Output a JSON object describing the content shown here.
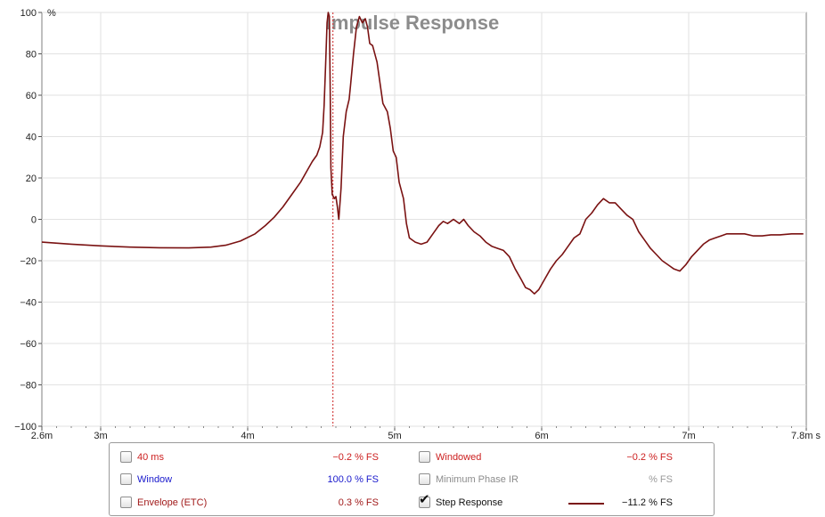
{
  "chart_data": {
    "type": "line",
    "title": "Impulse Response",
    "ylabel": "%",
    "xlim": [
      2.6,
      7.8
    ],
    "ylim": [
      -100,
      100
    ],
    "grid": true,
    "x_ticks": [
      {
        "value": 2.6,
        "label": "2.6m"
      },
      {
        "value": 3,
        "label": "3m"
      },
      {
        "value": 4,
        "label": "4m"
      },
      {
        "value": 5,
        "label": "5m"
      },
      {
        "value": 6,
        "label": "6m"
      },
      {
        "value": 7,
        "label": "7m"
      },
      {
        "value": 7.8,
        "label": "7.8m s"
      }
    ],
    "y_ticks": [
      100,
      80,
      60,
      40,
      20,
      0,
      -20,
      -40,
      -60,
      -80,
      -100
    ],
    "marker_x": 4.58,
    "series": [
      {
        "name": "Step Response",
        "color": "#7a1212",
        "points": [
          [
            2.6,
            -11
          ],
          [
            2.8,
            -12
          ],
          [
            3.0,
            -12.8
          ],
          [
            3.2,
            -13.4
          ],
          [
            3.4,
            -13.7
          ],
          [
            3.6,
            -13.8
          ],
          [
            3.75,
            -13.4
          ],
          [
            3.85,
            -12.5
          ],
          [
            3.95,
            -10.5
          ],
          [
            4.05,
            -7
          ],
          [
            4.12,
            -3
          ],
          [
            4.18,
            1
          ],
          [
            4.24,
            6
          ],
          [
            4.3,
            12
          ],
          [
            4.36,
            18
          ],
          [
            4.4,
            23
          ],
          [
            4.44,
            28
          ],
          [
            4.47,
            31
          ],
          [
            4.49,
            35
          ],
          [
            4.51,
            42
          ],
          [
            4.52,
            55
          ],
          [
            4.53,
            75
          ],
          [
            4.54,
            95
          ],
          [
            4.548,
            100
          ],
          [
            4.556,
            98
          ],
          [
            4.562,
            60
          ],
          [
            4.566,
            25
          ],
          [
            4.575,
            12
          ],
          [
            4.59,
            10
          ],
          [
            4.6,
            11
          ],
          [
            4.61,
            6
          ],
          [
            4.62,
            0
          ],
          [
            4.635,
            15
          ],
          [
            4.65,
            40
          ],
          [
            4.67,
            52
          ],
          [
            4.69,
            58
          ],
          [
            4.7,
            65
          ],
          [
            4.72,
            80
          ],
          [
            4.74,
            93
          ],
          [
            4.76,
            98
          ],
          [
            4.78,
            95
          ],
          [
            4.8,
            97
          ],
          [
            4.815,
            93
          ],
          [
            4.83,
            85
          ],
          [
            4.85,
            84
          ],
          [
            4.88,
            76
          ],
          [
            4.9,
            66
          ],
          [
            4.92,
            56
          ],
          [
            4.95,
            52
          ],
          [
            4.97,
            44
          ],
          [
            4.99,
            33
          ],
          [
            5.01,
            30
          ],
          [
            5.03,
            18
          ],
          [
            5.06,
            10
          ],
          [
            5.08,
            -2
          ],
          [
            5.1,
            -9
          ],
          [
            5.14,
            -11
          ],
          [
            5.18,
            -12
          ],
          [
            5.22,
            -11
          ],
          [
            5.26,
            -7
          ],
          [
            5.3,
            -3
          ],
          [
            5.33,
            -1
          ],
          [
            5.36,
            -2
          ],
          [
            5.4,
            0
          ],
          [
            5.44,
            -2
          ],
          [
            5.47,
            0
          ],
          [
            5.5,
            -3
          ],
          [
            5.54,
            -6
          ],
          [
            5.58,
            -8
          ],
          [
            5.62,
            -11
          ],
          [
            5.66,
            -13
          ],
          [
            5.7,
            -14
          ],
          [
            5.74,
            -15
          ],
          [
            5.78,
            -18
          ],
          [
            5.82,
            -24
          ],
          [
            5.86,
            -29
          ],
          [
            5.89,
            -33
          ],
          [
            5.92,
            -34
          ],
          [
            5.95,
            -36
          ],
          [
            5.98,
            -34
          ],
          [
            6.02,
            -29
          ],
          [
            6.06,
            -24
          ],
          [
            6.1,
            -20
          ],
          [
            6.14,
            -17
          ],
          [
            6.18,
            -13
          ],
          [
            6.22,
            -9
          ],
          [
            6.26,
            -7
          ],
          [
            6.3,
            0
          ],
          [
            6.34,
            3
          ],
          [
            6.38,
            7
          ],
          [
            6.42,
            10
          ],
          [
            6.46,
            8
          ],
          [
            6.5,
            8
          ],
          [
            6.54,
            5
          ],
          [
            6.58,
            2
          ],
          [
            6.62,
            0
          ],
          [
            6.66,
            -6
          ],
          [
            6.7,
            -10
          ],
          [
            6.74,
            -14
          ],
          [
            6.78,
            -17
          ],
          [
            6.82,
            -20
          ],
          [
            6.86,
            -22
          ],
          [
            6.9,
            -24
          ],
          [
            6.94,
            -25
          ],
          [
            6.98,
            -22
          ],
          [
            7.02,
            -18
          ],
          [
            7.06,
            -15
          ],
          [
            7.1,
            -12
          ],
          [
            7.14,
            -10
          ],
          [
            7.18,
            -9
          ],
          [
            7.22,
            -8
          ],
          [
            7.26,
            -7
          ],
          [
            7.32,
            -7
          ],
          [
            7.38,
            -7
          ],
          [
            7.44,
            -8
          ],
          [
            7.5,
            -8
          ],
          [
            7.56,
            -7.5
          ],
          [
            7.62,
            -7.5
          ],
          [
            7.7,
            -7
          ],
          [
            7.78,
            -7
          ]
        ]
      }
    ]
  },
  "legend": {
    "rows": [
      {
        "id": "40ms",
        "label": "40 ms",
        "value": "−0.2 % FS",
        "label_color": "#cc1f1f",
        "value_color": "#cc1f1f",
        "checked": false
      },
      {
        "id": "windowed",
        "label": "Windowed",
        "value": "−0.2 % FS",
        "label_color": "#cc1f1f",
        "value_color": "#cc1f1f",
        "checked": false
      },
      {
        "id": "window",
        "label": "Window",
        "value": "100.0 % FS",
        "label_color": "#1919cc",
        "value_color": "#1919cc",
        "checked": false
      },
      {
        "id": "min-phase",
        "label": "Minimum Phase IR",
        "value": "% FS",
        "label_color": "#8c8c8c",
        "value_color": "#9a9a9a",
        "checked": false
      },
      {
        "id": "envelope",
        "label": "Envelope (ETC)",
        "value": "0.3 % FS",
        "label_color": "#a11a1a",
        "value_color": "#a11a1a",
        "checked": false
      },
      {
        "id": "step",
        "label": "Step Response",
        "value": "−11.2 % FS",
        "label_color": "#111111",
        "value_color": "#111111",
        "checked": true,
        "swatch_color": "#7a1212"
      }
    ]
  }
}
